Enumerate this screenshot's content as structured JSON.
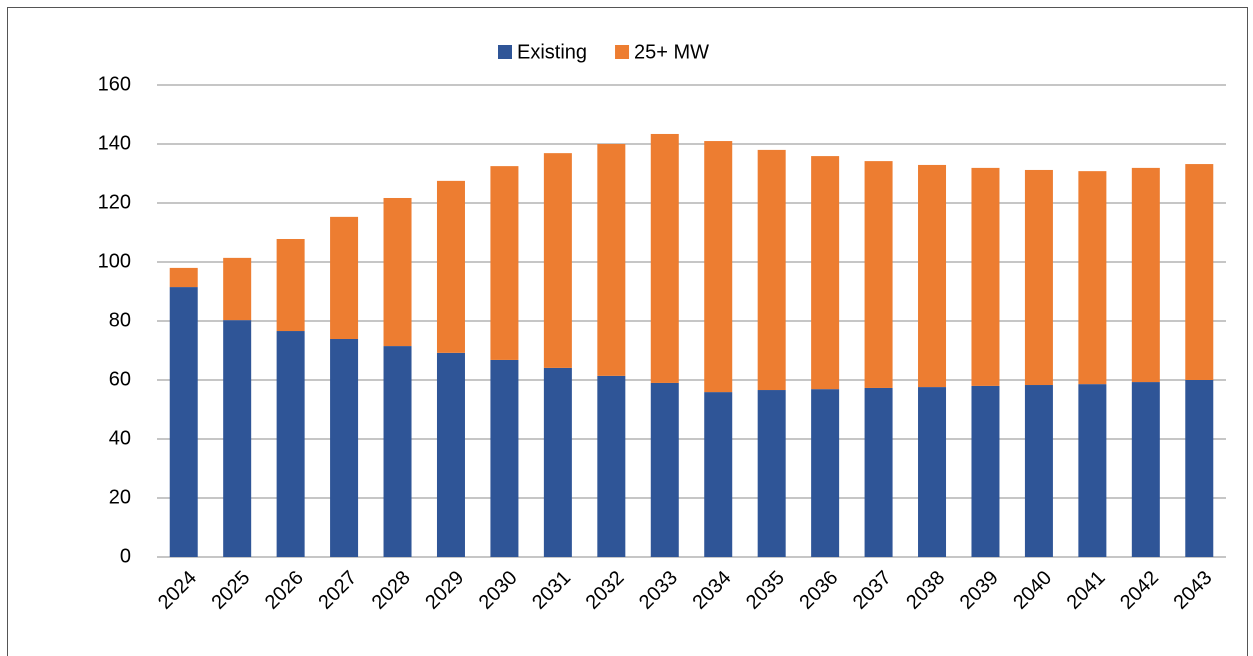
{
  "chart_data": {
    "type": "stacked_bar",
    "categories": [
      "2024",
      "2025",
      "2026",
      "2027",
      "2028",
      "2029",
      "2030",
      "2031",
      "2032",
      "2033",
      "2034",
      "2035",
      "2036",
      "2037",
      "2038",
      "2039",
      "2040",
      "2041",
      "2042",
      "2043"
    ],
    "series": [
      {
        "name": "Existing",
        "color": "#2f5597",
        "values": [
          91.5,
          80.3,
          76.6,
          73.9,
          71.5,
          69.2,
          66.8,
          64.1,
          61.4,
          59.0,
          55.9,
          56.6,
          56.9,
          57.3,
          57.6,
          58.0,
          58.3,
          58.6,
          59.3,
          60.0
        ]
      },
      {
        "name": "25+ MW",
        "color": "#ed7d31",
        "values": [
          6.5,
          21.1,
          31.2,
          41.4,
          50.2,
          58.3,
          65.7,
          72.8,
          78.6,
          84.4,
          85.1,
          81.4,
          79.0,
          76.9,
          75.3,
          73.9,
          72.9,
          72.2,
          72.6,
          73.2
        ]
      }
    ],
    "ylim": [
      0,
      160
    ],
    "yticks": [
      0,
      20,
      40,
      60,
      80,
      100,
      120,
      140,
      160
    ],
    "grid": true,
    "legend": "top"
  }
}
